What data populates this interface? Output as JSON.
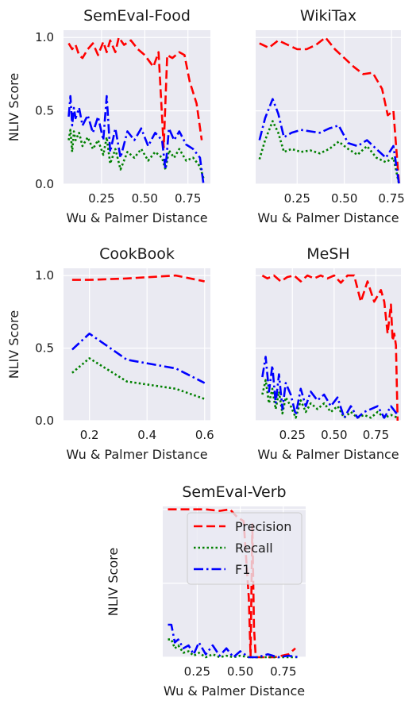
{
  "chart_data": [
    {
      "type": "line",
      "title": "SemEval-Food",
      "xlabel": "Wu & Palmer Distance",
      "ylabel": "NLIV Score",
      "xlim": [
        0.03,
        0.88
      ],
      "ylim": [
        0,
        1.05
      ],
      "xticks": [
        0.25,
        0.5,
        0.75
      ],
      "xtick_labels": [
        "0.25",
        "0.50",
        "0.75"
      ],
      "yticks": [
        0,
        0.5,
        1.0
      ],
      "ytick_labels": [
        "0.0",
        "0.5",
        "1.0"
      ],
      "grid": true,
      "series": [
        {
          "key": "precision",
          "x": [
            0.06,
            0.08,
            0.1,
            0.12,
            0.14,
            0.17,
            0.2,
            0.23,
            0.26,
            0.28,
            0.3,
            0.33,
            0.35,
            0.38,
            0.42,
            0.46,
            0.5,
            0.55,
            0.58,
            0.61,
            0.63,
            0.66,
            0.7,
            0.73,
            0.76,
            0.8,
            0.83
          ],
          "y": [
            0.96,
            0.92,
            0.95,
            0.88,
            0.86,
            0.92,
            0.96,
            0.88,
            0.97,
            0.9,
            0.98,
            0.9,
            1.0,
            0.95,
            0.98,
            0.92,
            0.88,
            0.8,
            0.9,
            0.25,
            0.88,
            0.86,
            0.9,
            0.88,
            0.7,
            0.55,
            0.3
          ]
        },
        {
          "key": "recall",
          "x": [
            0.06,
            0.07,
            0.08,
            0.09,
            0.1,
            0.12,
            0.14,
            0.17,
            0.2,
            0.23,
            0.26,
            0.28,
            0.3,
            0.33,
            0.36,
            0.4,
            0.44,
            0.48,
            0.52,
            0.56,
            0.6,
            0.62,
            0.64,
            0.67,
            0.7,
            0.74,
            0.78,
            0.82,
            0.84
          ],
          "y": [
            0.3,
            0.37,
            0.22,
            0.36,
            0.3,
            0.35,
            0.26,
            0.32,
            0.24,
            0.3,
            0.2,
            0.32,
            0.14,
            0.24,
            0.1,
            0.22,
            0.18,
            0.24,
            0.16,
            0.22,
            0.18,
            0.1,
            0.23,
            0.18,
            0.24,
            0.16,
            0.18,
            0.12,
            0.04
          ]
        },
        {
          "key": "f1",
          "x": [
            0.06,
            0.07,
            0.08,
            0.09,
            0.1,
            0.12,
            0.14,
            0.17,
            0.2,
            0.23,
            0.26,
            0.28,
            0.3,
            0.33,
            0.36,
            0.4,
            0.44,
            0.48,
            0.52,
            0.56,
            0.6,
            0.62,
            0.64,
            0.67,
            0.7,
            0.74,
            0.78,
            0.82,
            0.84
          ],
          "y": [
            0.46,
            0.6,
            0.4,
            0.52,
            0.45,
            0.52,
            0.4,
            0.47,
            0.35,
            0.46,
            0.3,
            0.6,
            0.22,
            0.38,
            0.18,
            0.36,
            0.3,
            0.38,
            0.26,
            0.35,
            0.3,
            0.1,
            0.38,
            0.3,
            0.36,
            0.27,
            0.24,
            0.18,
            0.0
          ]
        }
      ]
    },
    {
      "type": "line",
      "title": "WikiTax",
      "xlabel": "Wu & Palmer Distance",
      "ylabel": "",
      "xlim": [
        0.03,
        0.8
      ],
      "ylim": [
        0,
        1.05
      ],
      "xticks": [
        0.25,
        0.5,
        0.75
      ],
      "xtick_labels": [
        "0.25",
        "0.50",
        "0.75"
      ],
      "yticks": [
        0,
        0.5,
        1.0
      ],
      "ytick_labels": [],
      "grid": true,
      "series": [
        {
          "key": "precision",
          "x": [
            0.05,
            0.1,
            0.15,
            0.2,
            0.25,
            0.3,
            0.35,
            0.4,
            0.45,
            0.5,
            0.55,
            0.6,
            0.65,
            0.7,
            0.73,
            0.76,
            0.79
          ],
          "y": [
            0.96,
            0.93,
            0.98,
            0.95,
            0.92,
            0.92,
            0.95,
            1.0,
            0.92,
            0.86,
            0.8,
            0.75,
            0.76,
            0.65,
            0.47,
            0.5,
            0.0
          ]
        },
        {
          "key": "recall",
          "x": [
            0.05,
            0.08,
            0.12,
            0.15,
            0.18,
            0.22,
            0.27,
            0.32,
            0.37,
            0.42,
            0.47,
            0.52,
            0.57,
            0.62,
            0.67,
            0.72,
            0.76,
            0.79
          ],
          "y": [
            0.17,
            0.3,
            0.43,
            0.35,
            0.22,
            0.24,
            0.22,
            0.23,
            0.21,
            0.24,
            0.29,
            0.24,
            0.2,
            0.26,
            0.18,
            0.15,
            0.18,
            0.0
          ]
        },
        {
          "key": "f1",
          "x": [
            0.05,
            0.08,
            0.12,
            0.15,
            0.18,
            0.22,
            0.27,
            0.32,
            0.37,
            0.42,
            0.47,
            0.52,
            0.57,
            0.62,
            0.67,
            0.72,
            0.76,
            0.79
          ],
          "y": [
            0.3,
            0.45,
            0.58,
            0.48,
            0.32,
            0.35,
            0.37,
            0.36,
            0.35,
            0.38,
            0.4,
            0.28,
            0.26,
            0.3,
            0.24,
            0.18,
            0.26,
            0.0
          ]
        }
      ]
    },
    {
      "type": "line",
      "title": "CookBook",
      "xlabel": "Wu & Palmer Distance",
      "ylabel": "NLIV Score",
      "xlim": [
        0.11,
        0.62
      ],
      "ylim": [
        0,
        1.05
      ],
      "xticks": [
        0.2,
        0.4,
        0.6
      ],
      "xtick_labels": [
        "0.2",
        "0.4",
        "0.6"
      ],
      "yticks": [
        0,
        0.5,
        1.0
      ],
      "ytick_labels": [
        "0.0",
        "0.5",
        "1.0"
      ],
      "grid": true,
      "series": [
        {
          "key": "precision",
          "x": [
            0.14,
            0.2,
            0.33,
            0.5,
            0.6
          ],
          "y": [
            0.97,
            0.97,
            0.98,
            1.0,
            0.96
          ]
        },
        {
          "key": "recall",
          "x": [
            0.14,
            0.2,
            0.33,
            0.5,
            0.6
          ],
          "y": [
            0.33,
            0.43,
            0.27,
            0.22,
            0.15
          ]
        },
        {
          "key": "f1",
          "x": [
            0.14,
            0.2,
            0.33,
            0.5,
            0.6
          ],
          "y": [
            0.49,
            0.6,
            0.42,
            0.36,
            0.26
          ]
        }
      ]
    },
    {
      "type": "line",
      "title": "MeSH",
      "xlabel": "Wu & Palmer Distance",
      "ylabel": "",
      "xlim": [
        0.03,
        0.9
      ],
      "ylim": [
        0,
        1.05
      ],
      "xticks": [
        0.25,
        0.5,
        0.75
      ],
      "xtick_labels": [
        "0.25",
        "0.50",
        "0.75"
      ],
      "yticks": [
        0,
        0.5,
        1.0
      ],
      "ytick_labels": [],
      "grid": true,
      "series": [
        {
          "key": "precision",
          "x": [
            0.07,
            0.1,
            0.14,
            0.18,
            0.22,
            0.26,
            0.3,
            0.34,
            0.38,
            0.42,
            0.46,
            0.5,
            0.54,
            0.58,
            0.62,
            0.66,
            0.7,
            0.74,
            0.78,
            0.8,
            0.82,
            0.84,
            0.85,
            0.86,
            0.87,
            0.88
          ],
          "y": [
            1.0,
            0.98,
            1.0,
            0.96,
            0.99,
            1.0,
            0.96,
            1.0,
            0.98,
            1.0,
            0.98,
            1.0,
            0.95,
            1.0,
            1.0,
            0.82,
            0.96,
            0.82,
            0.9,
            0.82,
            0.6,
            0.8,
            0.55,
            0.6,
            0.52,
            0.0
          ]
        },
        {
          "key": "recall",
          "x": [
            0.07,
            0.09,
            0.11,
            0.13,
            0.15,
            0.17,
            0.19,
            0.21,
            0.24,
            0.27,
            0.3,
            0.33,
            0.36,
            0.4,
            0.44,
            0.48,
            0.52,
            0.56,
            0.6,
            0.64,
            0.68,
            0.72,
            0.76,
            0.8,
            0.84,
            0.88
          ],
          "y": [
            0.18,
            0.28,
            0.12,
            0.22,
            0.08,
            0.2,
            0.05,
            0.16,
            0.1,
            0.02,
            0.14,
            0.06,
            0.12,
            0.08,
            0.12,
            0.06,
            0.1,
            0.02,
            0.06,
            0.02,
            0.04,
            0.02,
            0.06,
            0.02,
            0.04,
            0.02
          ]
        },
        {
          "key": "f1",
          "x": [
            0.07,
            0.09,
            0.11,
            0.13,
            0.15,
            0.17,
            0.19,
            0.21,
            0.24,
            0.27,
            0.3,
            0.33,
            0.36,
            0.4,
            0.44,
            0.48,
            0.52,
            0.56,
            0.6,
            0.64,
            0.68,
            0.72,
            0.76,
            0.8,
            0.84,
            0.88
          ],
          "y": [
            0.3,
            0.44,
            0.2,
            0.38,
            0.12,
            0.32,
            0.08,
            0.26,
            0.18,
            0.04,
            0.22,
            0.1,
            0.2,
            0.14,
            0.18,
            0.1,
            0.16,
            0.02,
            0.1,
            0.02,
            0.06,
            0.08,
            0.1,
            0.02,
            0.1,
            0.04
          ]
        }
      ]
    },
    {
      "type": "line",
      "title": "SemEval-Verb",
      "xlabel": "Wu & Palmer Distance",
      "ylabel": "NLIV Score",
      "xlim": [
        0.05,
        0.88
      ],
      "ylim": [
        0,
        1.02
      ],
      "xticks": [
        0.25,
        0.5,
        0.75
      ],
      "xtick_labels": [
        "0.25",
        "0.50",
        "0.75"
      ],
      "yticks": [
        0,
        0.5,
        1.0
      ],
      "ytick_labels": [],
      "grid": true,
      "legend": {
        "position": "upper right",
        "entries": [
          {
            "key": "precision",
            "label": "Precision"
          },
          {
            "key": "recall",
            "label": "Recall"
          },
          {
            "key": "f1",
            "label": "F1"
          }
        ]
      },
      "series": [
        {
          "key": "precision",
          "x": [
            0.08,
            0.15,
            0.22,
            0.3,
            0.38,
            0.44,
            0.48,
            0.52,
            0.55,
            0.56,
            0.57,
            0.58,
            0.59,
            0.62,
            0.7,
            0.78,
            0.82
          ],
          "y": [
            1.0,
            1.0,
            1.0,
            1.0,
            0.99,
            1.0,
            0.95,
            0.92,
            0.4,
            0.0,
            0.9,
            0.2,
            0.0,
            0.0,
            0.0,
            0.02,
            0.06
          ]
        },
        {
          "key": "recall",
          "x": [
            0.08,
            0.1,
            0.12,
            0.14,
            0.17,
            0.2,
            0.23,
            0.26,
            0.3,
            0.34,
            0.38,
            0.42,
            0.46,
            0.5,
            0.55,
            0.6,
            0.66,
            0.72,
            0.78,
            0.84
          ],
          "y": [
            0.12,
            0.12,
            0.06,
            0.08,
            0.03,
            0.04,
            0.01,
            0.03,
            0.0,
            0.02,
            0.0,
            0.01,
            0.0,
            0.01,
            0.0,
            0.0,
            0.0,
            0.0,
            0.0,
            0.0
          ]
        },
        {
          "key": "f1",
          "x": [
            0.08,
            0.1,
            0.12,
            0.14,
            0.17,
            0.2,
            0.23,
            0.26,
            0.3,
            0.34,
            0.38,
            0.42,
            0.46,
            0.5,
            0.55,
            0.6,
            0.66,
            0.72,
            0.78,
            0.84
          ],
          "y": [
            0.22,
            0.22,
            0.1,
            0.12,
            0.06,
            0.08,
            0.02,
            0.1,
            0.02,
            0.08,
            0.01,
            0.06,
            0.0,
            0.04,
            0.0,
            0.0,
            0.02,
            0.0,
            0.01,
            0.0
          ]
        }
      ]
    }
  ],
  "series_style": {
    "precision": {
      "color": "#ff0000",
      "dash": "11,5"
    },
    "recall": {
      "color": "#008000",
      "dash": "2.5,3"
    },
    "f1": {
      "color": "#0000ff",
      "dash": "12,4,2.5,4"
    }
  },
  "colors": {
    "plot_background": "#eaeaf2",
    "grid": "#ffffff",
    "text": "#1a1a1a"
  }
}
